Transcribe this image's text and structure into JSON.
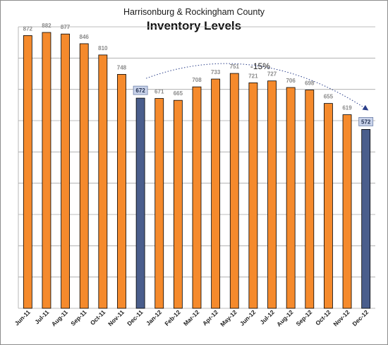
{
  "chart_data": {
    "type": "bar",
    "title": "Harrisonburg & Rockingham County",
    "subtitle": "Inventory Levels",
    "categories": [
      "Jun-11",
      "Jul-11",
      "Aug-11",
      "Sep-11",
      "Oct-11",
      "Nov-11",
      "Dec-11",
      "Jan-12",
      "Feb-12",
      "Mar-12",
      "Apr-12",
      "May-12",
      "Jun-12",
      "Jul-12",
      "Aug-12",
      "Sep-12",
      "Oct-12",
      "Nov-12",
      "Dec-12"
    ],
    "values": [
      872,
      882,
      877,
      846,
      810,
      748,
      672,
      671,
      665,
      708,
      733,
      751,
      721,
      727,
      706,
      698,
      655,
      619,
      572
    ],
    "highlight": [
      "Dec-11",
      "Dec-12"
    ],
    "ylim": [
      0,
      900
    ],
    "grid": "horizontal",
    "annotation": {
      "text": "-15%",
      "from": "Dec-11",
      "to": "Dec-12"
    },
    "colors": {
      "bar": "#f58a2c",
      "highlight": "#4a5e8c",
      "label_box": "#c9d3ea"
    }
  }
}
